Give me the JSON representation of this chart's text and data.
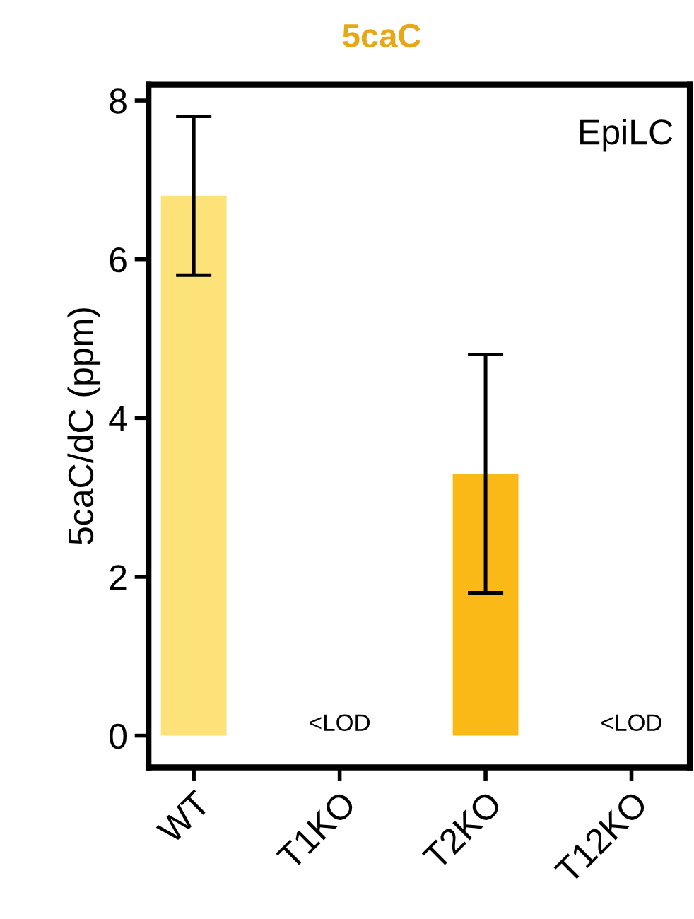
{
  "chart_data": {
    "type": "bar",
    "title": "5caC",
    "ylabel": "5caC/dC (ppm)",
    "categories": [
      "WT",
      "T1KO",
      "T2KO",
      "T12KO"
    ],
    "values": [
      6.8,
      null,
      3.3,
      null
    ],
    "colors": [
      "#fde27a",
      "#fde27a",
      "#fbb918",
      "#fbb918"
    ],
    "errors": [
      1.0,
      null,
      1.5,
      null
    ],
    "ylim": [
      -0.4,
      8.2
    ],
    "yticks": [
      0,
      2,
      4,
      6,
      8
    ],
    "grid": false,
    "legend": false,
    "annotations": [
      "EpiLC",
      "<LOD",
      "<LOD"
    ]
  }
}
